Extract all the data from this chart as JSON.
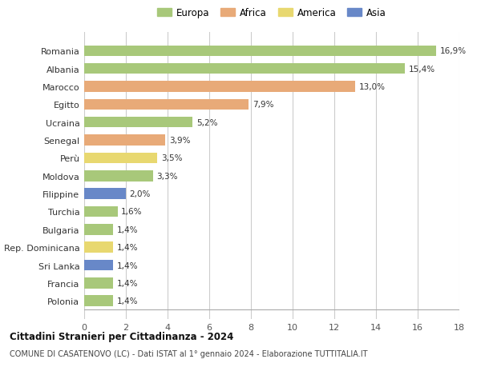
{
  "categories": [
    "Romania",
    "Albania",
    "Marocco",
    "Egitto",
    "Ucraina",
    "Senegal",
    "Perù",
    "Moldova",
    "Filippine",
    "Turchia",
    "Bulgaria",
    "Rep. Dominicana",
    "Sri Lanka",
    "Francia",
    "Polonia"
  ],
  "values": [
    16.9,
    15.4,
    13.0,
    7.9,
    5.2,
    3.9,
    3.5,
    3.3,
    2.0,
    1.6,
    1.4,
    1.4,
    1.4,
    1.4,
    1.4
  ],
  "labels": [
    "16,9%",
    "15,4%",
    "13,0%",
    "7,9%",
    "5,2%",
    "3,9%",
    "3,5%",
    "3,3%",
    "2,0%",
    "1,6%",
    "1,4%",
    "1,4%",
    "1,4%",
    "1,4%",
    "1,4%"
  ],
  "continents": [
    "Europa",
    "Europa",
    "Africa",
    "Africa",
    "Europa",
    "Africa",
    "America",
    "Europa",
    "Asia",
    "Europa",
    "Europa",
    "America",
    "Asia",
    "Europa",
    "Europa"
  ],
  "colors": {
    "Europa": "#a8c87a",
    "Africa": "#e8aa78",
    "America": "#e8d870",
    "Asia": "#6888c8"
  },
  "legend_labels": [
    "Europa",
    "Africa",
    "America",
    "Asia"
  ],
  "legend_colors": [
    "#a8c87a",
    "#e8aa78",
    "#e8d870",
    "#6888c8"
  ],
  "title": "Cittadini Stranieri per Cittadinanza - 2024",
  "subtitle": "COMUNE DI CASATENOVO (LC) - Dati ISTAT al 1° gennaio 2024 - Elaborazione TUTTITALIA.IT",
  "xlim": [
    0,
    18
  ],
  "xticks": [
    0,
    2,
    4,
    6,
    8,
    10,
    12,
    14,
    16,
    18
  ],
  "background_color": "#ffffff",
  "grid_color": "#cccccc",
  "bar_height": 0.6
}
